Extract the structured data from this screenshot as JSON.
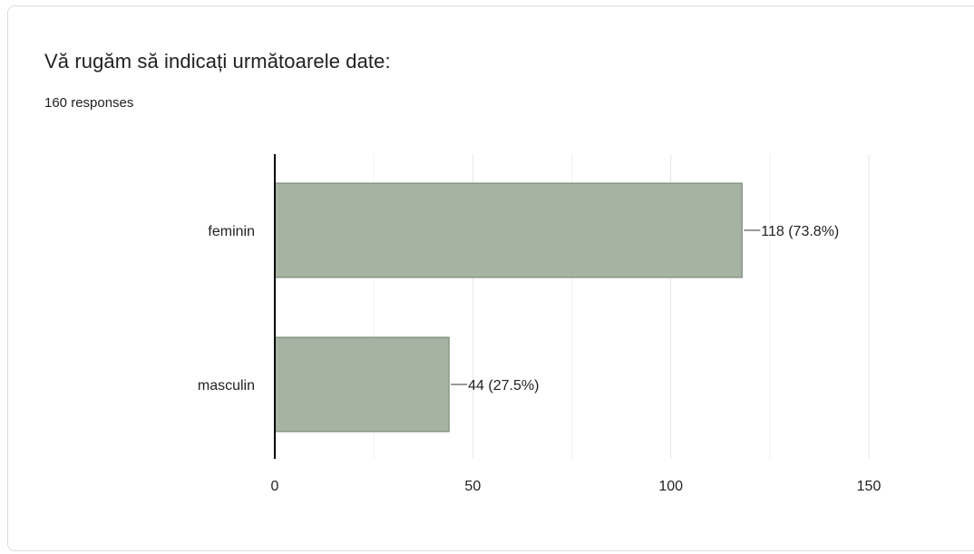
{
  "card": {
    "title": "Vă rugăm să indicați următoarele date:",
    "responses": "160 responses"
  },
  "colors": {
    "bar_fill": "#a6b3a2",
    "bar_stroke": "#6f7e6b",
    "gridline": "#e6e6e6",
    "axis": "#000000",
    "text": "#222222"
  },
  "chart_data": {
    "type": "bar",
    "orientation": "horizontal",
    "categories": [
      "feminin",
      "masculin"
    ],
    "values": [
      118,
      44
    ],
    "value_labels": [
      "118 (73.8%)",
      "44 (27.5%)"
    ],
    "xlim": [
      0,
      150
    ],
    "xticks": [
      0,
      50,
      100,
      150
    ],
    "grid": true
  }
}
